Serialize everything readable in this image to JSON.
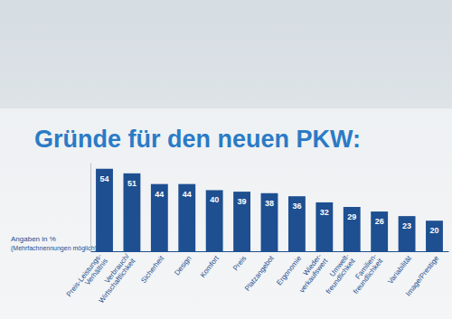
{
  "chart_data": {
    "type": "bar",
    "title": "Gründe für den neuen PKW:",
    "annotations": [
      "Angaben in %",
      "(Mehrfachnennungen möglich)"
    ],
    "categories": [
      "Preis-Leistungs-\nVerhältnis",
      "Verbrauch/\nWirtschaftlichkeit",
      "Sicherheit",
      "Design",
      "Komfort",
      "Preis",
      "Platzangebot",
      "Ergonomie",
      "Wieder-\nverkaufswert",
      "Umwelt-\nfreundlichkeit",
      "Familien-\nfreundlichkeit",
      "Variabilität",
      "Image/Prestige"
    ],
    "values": [
      54,
      51,
      44,
      44,
      40,
      39,
      38,
      36,
      32,
      29,
      26,
      23,
      20
    ],
    "color": "#1d4f91",
    "ylim": [
      0,
      58
    ],
    "grid": false,
    "data_labels": true,
    "tick_labels": "x"
  }
}
